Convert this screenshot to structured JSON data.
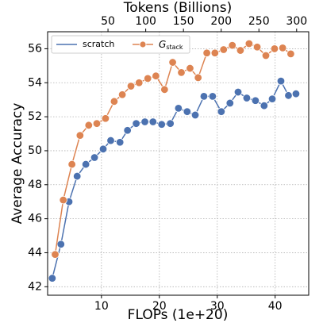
{
  "chart_data": {
    "type": "line",
    "xlabel": "FLOPs (1e+20)",
    "ylabel": "Average Accuracy",
    "x2label": "Tokens (Billions)",
    "xlim": [
      0.7,
      45.8
    ],
    "xticks": [
      10,
      20,
      30,
      40
    ],
    "x2lim": [
      -30,
      316
    ],
    "x2ticks": [
      50,
      100,
      150,
      200,
      250,
      300
    ],
    "ylim": [
      41.5,
      57.0
    ],
    "yticks": [
      42,
      44,
      46,
      48,
      50,
      52,
      54,
      56
    ],
    "grid": true,
    "legend": "upper left",
    "series": [
      {
        "name": "scratch",
        "color": "#4c72b0",
        "x": [
          1.5,
          3.0,
          4.4,
          5.8,
          7.3,
          8.8,
          10.3,
          11.6,
          13.2,
          14.5,
          16.0,
          17.5,
          18.9,
          20.4,
          21.9,
          23.3,
          24.8,
          26.2,
          27.7,
          29.2,
          30.7,
          32.2,
          33.6,
          35.1,
          36.6,
          38.1,
          39.5,
          41.0,
          42.3,
          43.6
        ],
        "values": [
          42.5,
          44.5,
          47.0,
          48.5,
          49.2,
          49.6,
          50.1,
          50.6,
          50.5,
          51.2,
          51.6,
          51.7,
          51.7,
          51.55,
          51.6,
          52.5,
          52.3,
          52.1,
          53.2,
          53.2,
          52.3,
          52.8,
          53.45,
          53.1,
          52.95,
          52.65,
          53.05,
          54.1,
          53.25,
          53.35
        ]
      },
      {
        "name": "Gstack",
        "color": "#dd8452",
        "x": [
          2.0,
          3.4,
          4.9,
          6.3,
          7.8,
          9.2,
          10.7,
          12.2,
          13.6,
          15.1,
          16.5,
          18.0,
          19.4,
          20.9,
          22.3,
          23.8,
          25.3,
          26.7,
          28.2,
          29.6,
          31.1,
          32.6,
          34.0,
          35.5,
          36.9,
          38.4,
          39.9,
          41.3,
          42.7
        ],
        "values": [
          43.9,
          47.1,
          49.2,
          50.9,
          51.5,
          51.6,
          51.9,
          52.9,
          53.3,
          53.8,
          54.0,
          54.25,
          54.4,
          53.6,
          55.2,
          54.6,
          54.85,
          54.3,
          55.75,
          55.75,
          55.95,
          56.2,
          55.9,
          56.3,
          56.1,
          55.6,
          56.0,
          56.05,
          55.7
        ]
      }
    ]
  }
}
